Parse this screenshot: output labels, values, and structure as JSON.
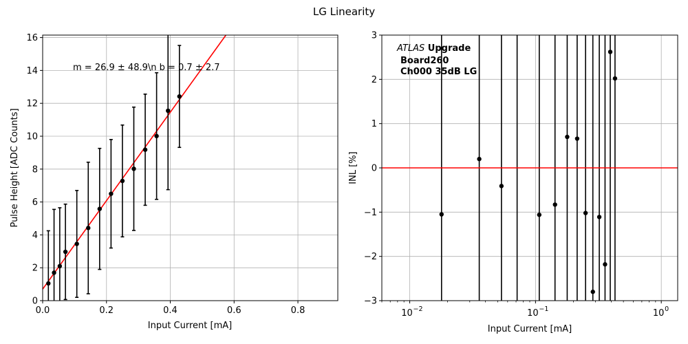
{
  "figure": {
    "title": "LG Linearity"
  },
  "chart_data": [
    {
      "type": "scatter",
      "name": "linearity",
      "xlabel": "Input Current [mA]",
      "ylabel": "Pulse Height [ADC Counts]",
      "xlim": [
        0,
        0.925
      ],
      "ylim": [
        0,
        16.15
      ],
      "xticks": [
        0.0,
        0.2,
        0.4,
        0.6,
        0.8
      ],
      "xtick_labels": [
        "0.0",
        "0.2",
        "0.4",
        "0.6",
        "0.8"
      ],
      "yticks": [
        0,
        2,
        4,
        6,
        8,
        10,
        12,
        14,
        16
      ],
      "ytick_labels": [
        "0",
        "2",
        "4",
        "6",
        "8",
        "10",
        "12",
        "14",
        "16"
      ],
      "grid": true,
      "annotation": "m = 26.9 ± 48.9\\n b = 0.7 ± 2.7",
      "fit_line": {
        "slope": 26.9,
        "intercept": 0.7,
        "color": "#ff0000"
      },
      "points": [
        {
          "x": 0.0179,
          "y": 1.05,
          "err": 3.2
        },
        {
          "x": 0.0357,
          "y": 1.7,
          "err": 3.85
        },
        {
          "x": 0.0536,
          "y": 2.1,
          "err": 3.55
        },
        {
          "x": 0.0714,
          "y": 2.97,
          "err": 2.9
        },
        {
          "x": 0.1071,
          "y": 3.45,
          "err": 3.25
        },
        {
          "x": 0.1429,
          "y": 4.42,
          "err": 4.0
        },
        {
          "x": 0.1786,
          "y": 5.58,
          "err": 3.68
        },
        {
          "x": 0.2143,
          "y": 6.5,
          "err": 3.3
        },
        {
          "x": 0.25,
          "y": 7.28,
          "err": 3.4
        },
        {
          "x": 0.2857,
          "y": 8.02,
          "err": 3.75
        },
        {
          "x": 0.3214,
          "y": 9.18,
          "err": 3.38
        },
        {
          "x": 0.3571,
          "y": 10.01,
          "err": 3.85
        },
        {
          "x": 0.3929,
          "y": 11.55,
          "err": 4.8
        },
        {
          "x": 0.4286,
          "y": 12.42,
          "err": 3.1
        }
      ],
      "marker_color": "#000000"
    },
    {
      "type": "scatter",
      "name": "inl",
      "xlabel": "Input Current [mA]",
      "ylabel": "INL [%]",
      "xscale": "log",
      "xlim": [
        0.006,
        1.35
      ],
      "ylim": [
        -3,
        3
      ],
      "xticks": [
        0.01,
        0.1,
        1
      ],
      "xtick_labels": [
        "10",
        "10",
        "10"
      ],
      "xtick_exponents": [
        "−2",
        "−1",
        "0"
      ],
      "yticks": [
        -3,
        -2,
        -1,
        0,
        1,
        2,
        3
      ],
      "ytick_labels": [
        "−3",
        "−2",
        "−1",
        "0",
        "1",
        "2",
        "3"
      ],
      "grid": true,
      "zero_line_color": "#ff0000",
      "annotation": {
        "italic": "ATLAS",
        "line1": " Upgrade",
        "line2": "Board260",
        "line3": "Ch000 35dB LG"
      },
      "points": [
        {
          "x": 0.0179,
          "y": -1.05
        },
        {
          "x": 0.0357,
          "y": 0.2
        },
        {
          "x": 0.0536,
          "y": -0.41
        },
        {
          "x": 0.0714,
          "y": null
        },
        {
          "x": 0.1071,
          "y": -1.06
        },
        {
          "x": 0.1429,
          "y": -0.83
        },
        {
          "x": 0.1786,
          "y": 0.7
        },
        {
          "x": 0.2143,
          "y": 0.66
        },
        {
          "x": 0.25,
          "y": -1.02
        },
        {
          "x": 0.2857,
          "y": -2.8
        },
        {
          "x": 0.3214,
          "y": -1.11
        },
        {
          "x": 0.3571,
          "y": -2.18
        },
        {
          "x": 0.3929,
          "y": 2.62
        },
        {
          "x": 0.4286,
          "y": 2.02
        }
      ],
      "marker_color": "#000000"
    }
  ]
}
